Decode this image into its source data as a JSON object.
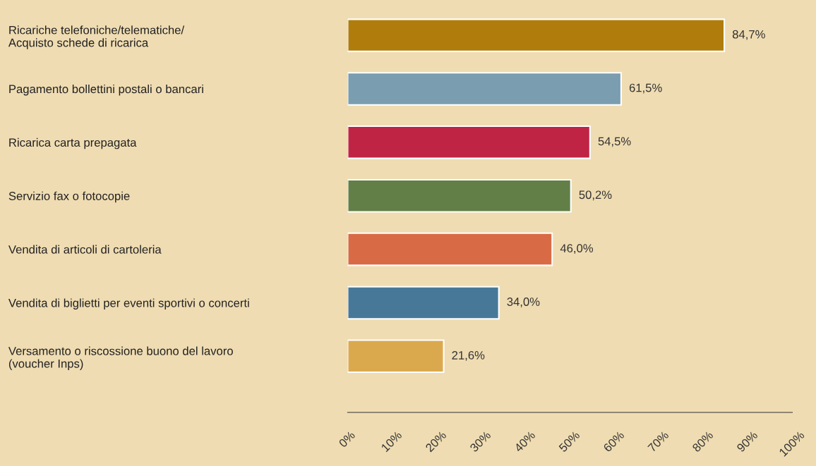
{
  "chart_data": {
    "type": "bar",
    "orientation": "horizontal",
    "categories": [
      "Ricariche telefoniche/telematiche/\nAcquisto schede di ricarica",
      "Pagamento bollettini postali o bancari",
      "Ricarica carta prepagata",
      "Servizio fax o fotocopie",
      "Vendita di articoli di cartoleria",
      "Vendita di biglietti per eventi sportivi o concerti",
      "Versamento o riscossione buono del lavoro\n(voucher Inps)"
    ],
    "values": [
      84.7,
      61.5,
      54.5,
      50.2,
      46.0,
      34.0,
      21.6
    ],
    "value_labels": [
      "84,7%",
      "61,5%",
      "54,5%",
      "50,2%",
      "46,0%",
      "34,0%",
      "21,6%"
    ],
    "colors": [
      "#b07d0c",
      "#7a9db0",
      "#c02445",
      "#637f48",
      "#d86b45",
      "#477898",
      "#dba94d"
    ],
    "xlim": [
      0,
      100
    ],
    "xticks": [
      {
        "value": 0,
        "label": "0%"
      },
      {
        "value": 10,
        "label": "10%"
      },
      {
        "value": 20,
        "label": "20%"
      },
      {
        "value": 30,
        "label": "30%"
      },
      {
        "value": 40,
        "label": "40%"
      },
      {
        "value": 50,
        "label": "50%"
      },
      {
        "value": 60,
        "label": "60%"
      },
      {
        "value": 70,
        "label": "70%"
      },
      {
        "value": 80,
        "label": "80%"
      },
      {
        "value": 90,
        "label": "90%"
      },
      {
        "value": 100,
        "label": "100%"
      }
    ],
    "grid": false,
    "legend": false
  }
}
